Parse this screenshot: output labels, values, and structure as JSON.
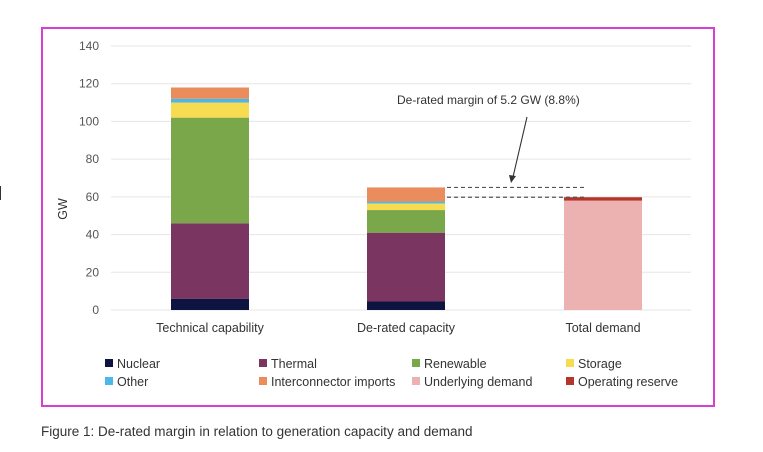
{
  "chart_data": {
    "type": "bar",
    "stacked": true,
    "categories": [
      "Technical capability",
      "De-rated capacity",
      "Total demand"
    ],
    "ylabel": "GW",
    "ylim": [
      0,
      140
    ],
    "yticks": [
      0,
      20,
      40,
      60,
      80,
      100,
      120,
      140
    ],
    "grid": true,
    "legend_position": "bottom",
    "series": [
      {
        "name": "Nuclear",
        "color": "#0d1440",
        "values": [
          6,
          4.5,
          0
        ]
      },
      {
        "name": "Thermal",
        "color": "#7b3561",
        "values": [
          40,
          36.5,
          0
        ]
      },
      {
        "name": "Renewable",
        "color": "#7ba74b",
        "values": [
          56,
          12,
          0
        ]
      },
      {
        "name": "Storage",
        "color": "#f7dc52",
        "values": [
          8,
          3.5,
          0
        ]
      },
      {
        "name": "Other",
        "color": "#4cb8e8",
        "values": [
          2,
          1,
          0
        ]
      },
      {
        "name": "Interconnector imports",
        "color": "#ea8c5c",
        "values": [
          6,
          7.5,
          0
        ]
      },
      {
        "name": "Underlying demand",
        "color": "#ecb2b2",
        "values": [
          0,
          0,
          58
        ]
      },
      {
        "name": "Operating reserve",
        "color": "#b5352c",
        "values": [
          0,
          0,
          1.8
        ]
      }
    ],
    "annotation": {
      "text": "De-rated margin of 5.2 GW (8.8%)",
      "upper": 65,
      "lower": 59.8
    }
  },
  "caption": "Figure 1: De-rated margin in relation to generation capacity and demand"
}
